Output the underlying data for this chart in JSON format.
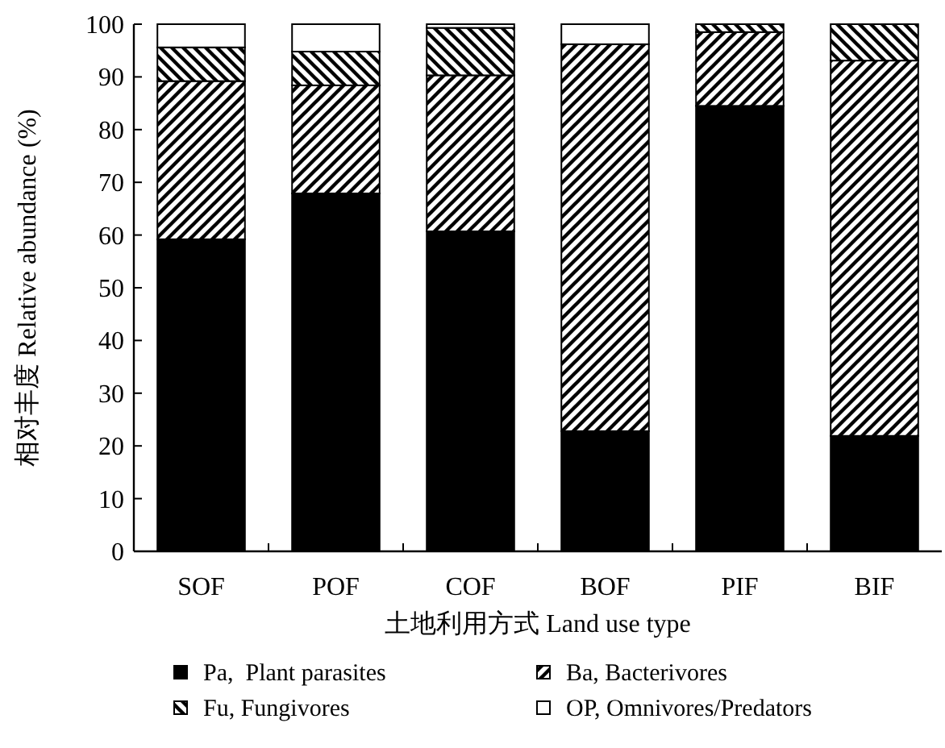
{
  "chart_data": {
    "type": "bar",
    "stacked": true,
    "xlabel": "土地利用方式 Land use type",
    "ylabel": "相对丰度 Relative abundance (%)",
    "categories": [
      "SOF",
      "POF",
      "COF",
      "BOF",
      "PIF",
      "BIF"
    ],
    "series": [
      {
        "name": "Pa,  Plant parasites",
        "color": "#000000",
        "values": [
          59.2,
          67.9,
          60.7,
          22.8,
          84.5,
          21.9
        ]
      },
      {
        "name": "Ba, Bacterivores",
        "color": "#000000",
        "values": [
          30.0,
          20.5,
          29.6,
          73.4,
          14.0,
          71.2
        ]
      },
      {
        "name": "Fu, Fungivores",
        "color": "#000000",
        "values": [
          6.4,
          6.4,
          9.0,
          0,
          1.5,
          6.9
        ]
      },
      {
        "name": "OP, Omnivores/Predators",
        "color": "#ffffff",
        "values": [
          4.4,
          5.2,
          0.7,
          3.8,
          0,
          0
        ]
      }
    ],
    "ylim": [
      0,
      100
    ],
    "yticks": [
      0,
      10,
      20,
      30,
      40,
      50,
      60,
      70,
      80,
      90,
      100
    ],
    "grid": false,
    "legend": "bottom"
  }
}
